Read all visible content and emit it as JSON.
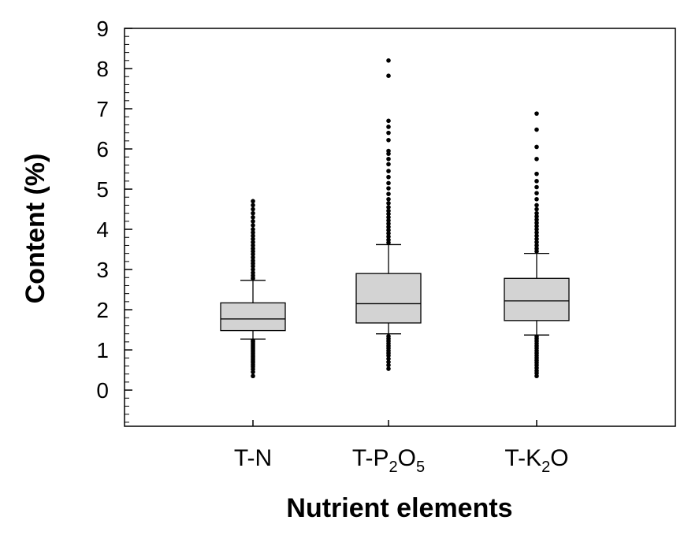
{
  "chart_data": {
    "type": "box",
    "xlabel": "Nutrient elements",
    "ylabel": "Content (%)",
    "ylim": [
      -0.9,
      9
    ],
    "yticks": [
      0,
      1,
      2,
      3,
      4,
      5,
      6,
      7,
      8,
      9
    ],
    "grid": false,
    "box_color": "#d3d3d3",
    "categories": [
      {
        "label": "T-N",
        "parts": [
          {
            "t": "T-N",
            "sub": false
          }
        ]
      },
      {
        "label": "T-P2O5",
        "parts": [
          {
            "t": "T-P",
            "sub": false
          },
          {
            "t": "2",
            "sub": true
          },
          {
            "t": "O",
            "sub": false
          },
          {
            "t": "5",
            "sub": true
          }
        ]
      },
      {
        "label": "T-K2O",
        "parts": [
          {
            "t": "T-K",
            "sub": false
          },
          {
            "t": "2",
            "sub": true
          },
          {
            "t": "O",
            "sub": false
          }
        ]
      }
    ],
    "boxes": [
      {
        "name": "T-N",
        "whisker_low": 1.27,
        "q1": 1.48,
        "median": 1.77,
        "q3": 2.17,
        "whisker_high": 2.73,
        "outliers": [
          0.35,
          0.45,
          0.52,
          0.58,
          0.63,
          0.68,
          0.72,
          0.76,
          0.8,
          0.84,
          0.88,
          0.92,
          0.96,
          1.0,
          1.04,
          1.08,
          1.12,
          1.16,
          1.2,
          1.23,
          2.78,
          2.85,
          2.92,
          3.0,
          3.08,
          3.15,
          3.22,
          3.3,
          3.38,
          3.45,
          3.52,
          3.6,
          3.68,
          3.76,
          3.84,
          3.92,
          4.0,
          4.1,
          4.2,
          4.3,
          4.4,
          4.5,
          4.6,
          4.7
        ]
      },
      {
        "name": "T-P2O5",
        "whisker_low": 1.4,
        "q1": 1.67,
        "median": 2.15,
        "q3": 2.9,
        "whisker_high": 3.62,
        "outliers": [
          0.53,
          0.62,
          0.7,
          0.78,
          0.86,
          0.92,
          0.98,
          1.04,
          1.1,
          1.16,
          1.22,
          1.28,
          1.34,
          3.67,
          3.74,
          3.82,
          3.9,
          3.98,
          4.06,
          4.14,
          4.22,
          4.3,
          4.38,
          4.46,
          4.55,
          4.65,
          4.75,
          4.88,
          5.02,
          5.15,
          5.3,
          5.45,
          5.62,
          5.75,
          5.88,
          5.95,
          6.22,
          6.4,
          6.55,
          6.7,
          7.82,
          8.2
        ]
      },
      {
        "name": "T-K2O",
        "whisker_low": 1.37,
        "q1": 1.73,
        "median": 2.22,
        "q3": 2.78,
        "whisker_high": 3.4,
        "outliers": [
          0.35,
          0.42,
          0.48,
          0.55,
          0.62,
          0.68,
          0.74,
          0.8,
          0.86,
          0.92,
          0.98,
          1.04,
          1.1,
          1.16,
          1.22,
          1.28,
          1.33,
          3.45,
          3.52,
          3.6,
          3.68,
          3.76,
          3.84,
          3.92,
          4.0,
          4.08,
          4.16,
          4.24,
          4.32,
          4.4,
          4.5,
          4.6,
          4.75,
          4.9,
          5.05,
          5.2,
          5.38,
          5.75,
          6.05,
          6.48,
          6.88
        ]
      }
    ]
  }
}
